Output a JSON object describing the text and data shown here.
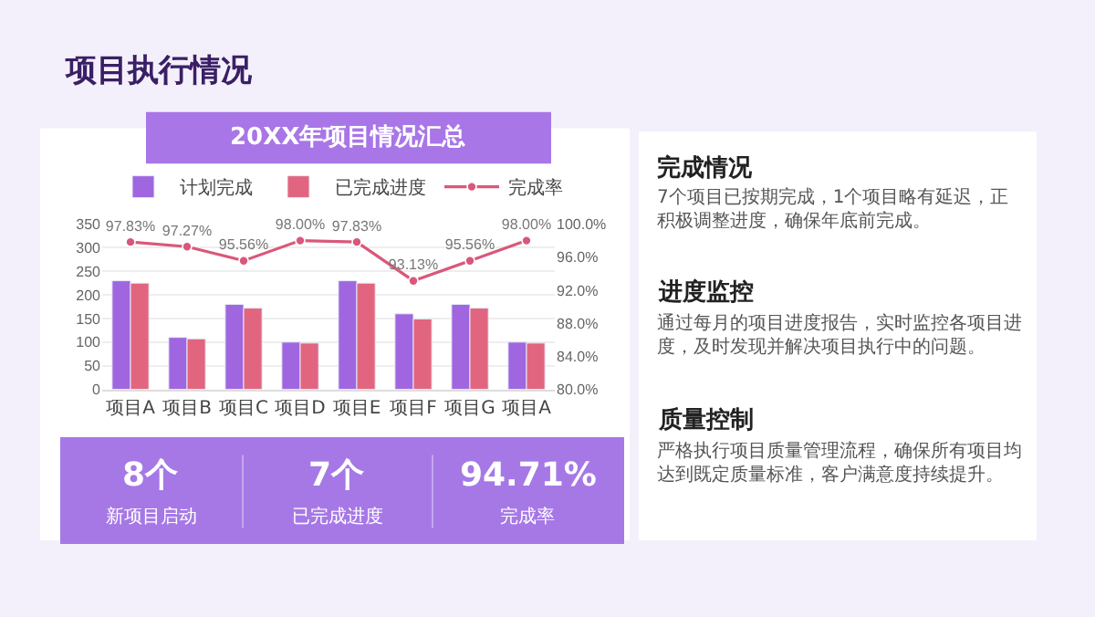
{
  "chart_data": {
    "type": "bar",
    "title": "项目执行情况",
    "subtitle": "20XX年项目情况汇总",
    "categories": [
      "项目A",
      "项目B",
      "项目C",
      "项目D",
      "项目E",
      "项目F",
      "项目G",
      "项目A"
    ],
    "series": [
      {
        "name": "计划完成",
        "color": "#a066e0",
        "values": [
          230,
          110,
          180,
          100,
          230,
          160,
          180,
          100
        ]
      },
      {
        "name": "已完成进度",
        "color": "#e2657f",
        "values": [
          225,
          107,
          172,
          98,
          225,
          149,
          172,
          98
        ]
      },
      {
        "name": "完成率",
        "type": "line",
        "axis": "y2",
        "color": "#d9587a",
        "values": [
          97.83,
          97.27,
          95.56,
          98.0,
          97.83,
          93.13,
          95.56,
          98.0
        ],
        "value_labels": [
          "97.83%",
          "97.27%",
          "95.56%",
          "98.00%",
          "97.83%",
          "93.13%",
          "95.56%",
          "98.00%"
        ]
      }
    ],
    "ylim": [
      0,
      350
    ],
    "yticks": [
      0,
      50,
      100,
      150,
      200,
      250,
      300,
      350
    ],
    "y2lim": [
      80,
      100
    ],
    "y2ticks": [
      {
        "value": 80,
        "label": "80.0%"
      },
      {
        "value": 84,
        "label": "84.0%"
      },
      {
        "value": 88,
        "label": "88.0%"
      },
      {
        "value": 92,
        "label": "92.0%"
      },
      {
        "value": 96,
        "label": "96.0%"
      },
      {
        "value": 100,
        "label": "100.0%"
      }
    ],
    "grid": "y",
    "legend": "top",
    "marker": "circle",
    "line_style": "solid",
    "annotations": [
      "8个",
      "新项目启动",
      "7个",
      "已完成进度",
      "94.71%",
      "完成率",
      "完成情况",
      "7个项目已按期完成，1个项目略有延迟，正积极调整进度，确保年底前完成。",
      "进度监控",
      "通过每月的项目进度报告，实时监控各项目进度，及时发现并解决项目执行中的问题。",
      "质量控制",
      "严格执行项目质量管理流程，确保所有项目均达到既定质量标准，客户满意度持续提升。"
    ]
  }
}
